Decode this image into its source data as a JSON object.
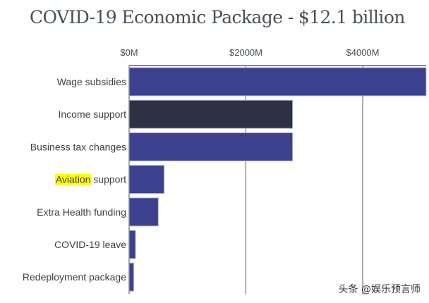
{
  "chart_data": {
    "type": "bar",
    "orientation": "horizontal",
    "title": "COVID-19 Economic Package - $12.1 billion",
    "xlabel": "",
    "ylabel": "",
    "x_axis_position": "top",
    "xlim": [
      0,
      5080
    ],
    "x_ticks": [
      0,
      2000,
      4000
    ],
    "x_tick_labels": [
      "$0M",
      "$2000M",
      "$4000M"
    ],
    "grid": true,
    "categories": [
      "Wage subsidies",
      "Income support",
      "Business tax changes",
      "Aviation support",
      "Extra Health funding",
      "COVID-19 leave",
      "Redeployment package"
    ],
    "values": [
      5100,
      2800,
      2800,
      600,
      500,
      110,
      80
    ],
    "bar_colors": [
      "#3b418f",
      "#2e3044",
      "#3b418f",
      "#3b418f",
      "#3b418f",
      "#3b418f",
      "#3b418f"
    ],
    "highlight": {
      "category_index": 3,
      "text": "Aviation",
      "color": "#ffff00"
    },
    "unit": "$M"
  },
  "watermark": "头条 @娱乐预言师"
}
